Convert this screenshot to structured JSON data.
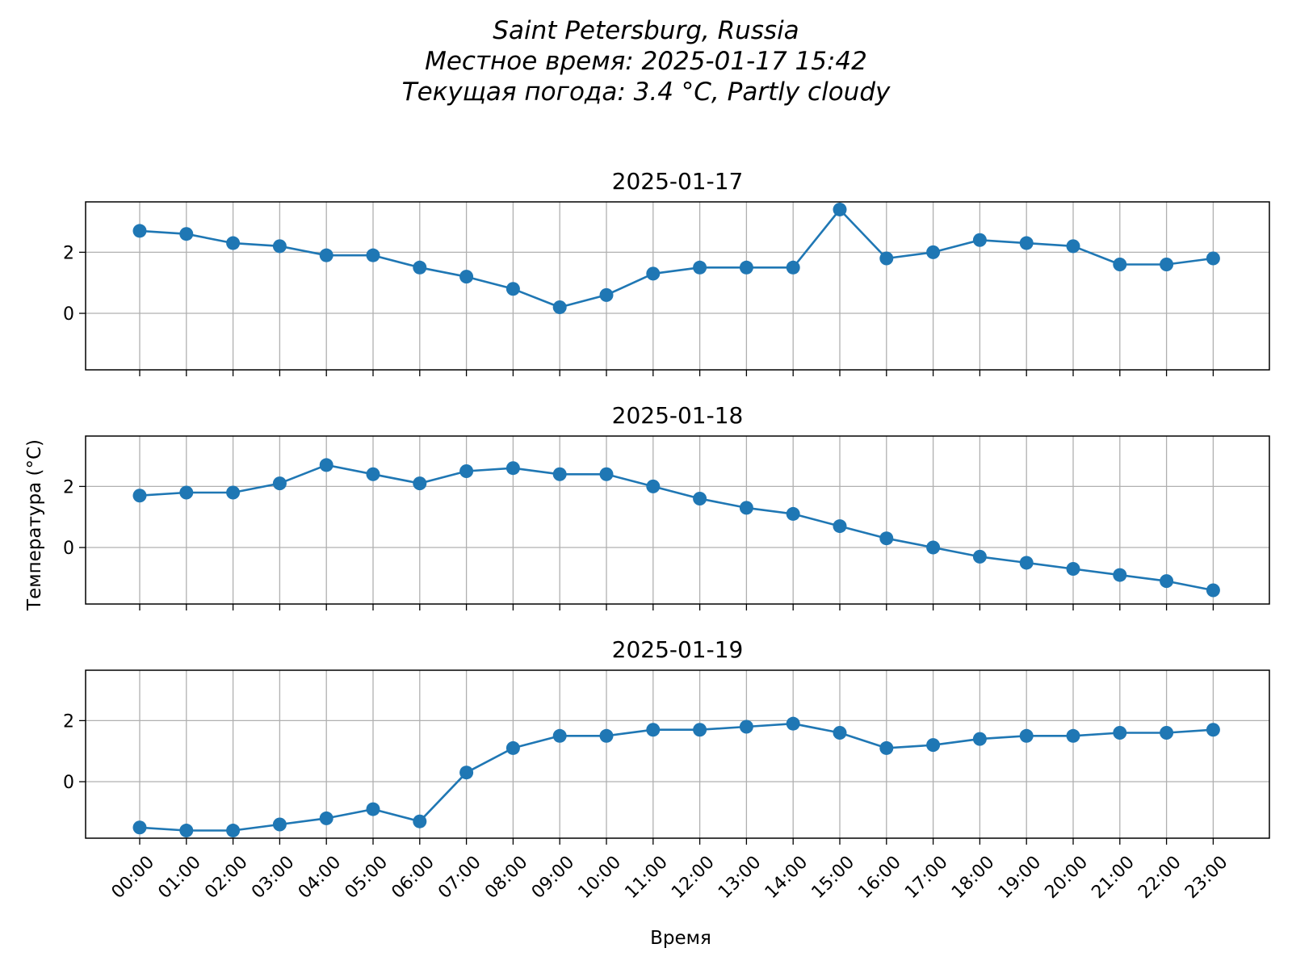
{
  "figure": {
    "title_lines": [
      "Saint Petersburg, Russia",
      "Местное время: 2025-01-17 15:42",
      "Текущая погода: 3.4 °C, Partly cloudy"
    ],
    "xlabel": "Время",
    "ylabel": "Температура (°C)"
  },
  "colors": {
    "series": "#1f77b4",
    "grid": "#b0b0b0",
    "axes": "#000000"
  },
  "chart_data": [
    {
      "type": "line",
      "title": "2025-01-17",
      "categories": [
        "00:00",
        "01:00",
        "02:00",
        "03:00",
        "04:00",
        "05:00",
        "06:00",
        "07:00",
        "08:00",
        "09:00",
        "10:00",
        "11:00",
        "12:00",
        "13:00",
        "14:00",
        "15:00",
        "16:00",
        "17:00",
        "18:00",
        "19:00",
        "20:00",
        "21:00",
        "22:00",
        "23:00"
      ],
      "values": [
        2.7,
        2.6,
        2.3,
        2.2,
        1.9,
        1.9,
        1.5,
        1.2,
        0.8,
        0.2,
        0.6,
        1.3,
        1.5,
        1.5,
        1.5,
        3.4,
        1.8,
        2.0,
        2.4,
        2.3,
        2.2,
        1.6,
        1.6,
        1.8
      ],
      "ylim": [
        -1.85,
        3.65
      ],
      "yticks": [
        0,
        2
      ],
      "grid": true,
      "marker": "circle"
    },
    {
      "type": "line",
      "title": "2025-01-18",
      "categories": [
        "00:00",
        "01:00",
        "02:00",
        "03:00",
        "04:00",
        "05:00",
        "06:00",
        "07:00",
        "08:00",
        "09:00",
        "10:00",
        "11:00",
        "12:00",
        "13:00",
        "14:00",
        "15:00",
        "16:00",
        "17:00",
        "18:00",
        "19:00",
        "20:00",
        "21:00",
        "22:00",
        "23:00"
      ],
      "values": [
        1.7,
        1.8,
        1.8,
        2.1,
        2.7,
        2.4,
        2.1,
        2.5,
        2.6,
        2.4,
        2.4,
        2.0,
        1.6,
        1.3,
        1.1,
        0.7,
        0.3,
        0.0,
        -0.3,
        -0.5,
        -0.7,
        -0.9,
        -1.1,
        -1.4
      ],
      "ylim": [
        -1.85,
        3.65
      ],
      "yticks": [
        0,
        2
      ],
      "grid": true,
      "marker": "circle"
    },
    {
      "type": "line",
      "title": "2025-01-19",
      "categories": [
        "00:00",
        "01:00",
        "02:00",
        "03:00",
        "04:00",
        "05:00",
        "06:00",
        "07:00",
        "08:00",
        "09:00",
        "10:00",
        "11:00",
        "12:00",
        "13:00",
        "14:00",
        "15:00",
        "16:00",
        "17:00",
        "18:00",
        "19:00",
        "20:00",
        "21:00",
        "22:00",
        "23:00"
      ],
      "values": [
        -1.5,
        -1.6,
        -1.6,
        -1.4,
        -1.2,
        -0.9,
        -1.3,
        0.3,
        1.1,
        1.5,
        1.5,
        1.7,
        1.7,
        1.8,
        1.9,
        1.6,
        1.1,
        1.2,
        1.4,
        1.5,
        1.5,
        1.6,
        1.6,
        1.7
      ],
      "ylim": [
        -1.85,
        3.65
      ],
      "yticks": [
        0,
        2
      ],
      "grid": true,
      "marker": "circle"
    }
  ]
}
